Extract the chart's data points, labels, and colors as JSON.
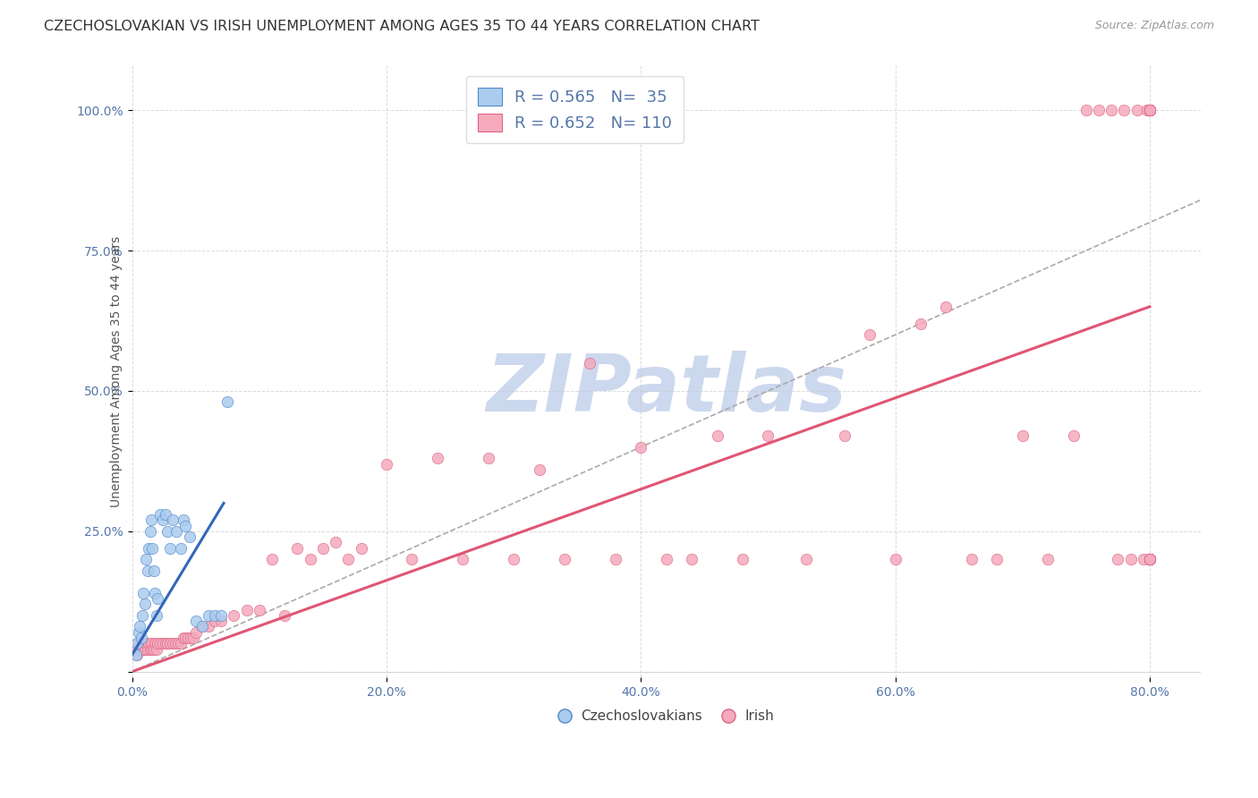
{
  "title": "CZECHOSLOVAKIAN VS IRISH UNEMPLOYMENT AMONG AGES 35 TO 44 YEARS CORRELATION CHART",
  "source": "Source: ZipAtlas.com",
  "ylabel": "Unemployment Among Ages 35 to 44 years",
  "xlim": [
    0.0,
    0.84
  ],
  "ylim": [
    -0.01,
    1.08
  ],
  "xticks": [
    0.0,
    0.2,
    0.4,
    0.6,
    0.8
  ],
  "xtick_labels": [
    "0.0%",
    "20.0%",
    "40.0%",
    "60.0%",
    "80.0%"
  ],
  "yticks": [
    0.0,
    0.25,
    0.5,
    0.75,
    1.0
  ],
  "ytick_labels": [
    "",
    "25.0%",
    "50.0%",
    "75.0%",
    "100.0%"
  ],
  "color_czech": "#aaccee",
  "color_irish": "#f5aabb",
  "color_czech_edge": "#5588cc",
  "color_irish_edge": "#dd6688",
  "color_trend_czech": "#3366bb",
  "color_trend_irish": "#e05575",
  "color_refline": "#aaaaaa",
  "color_axis_ticks": "#5577aa",
  "color_title": "#333333",
  "color_source": "#999999",
  "color_ylabel": "#555555",
  "watermark": "ZIPatlas",
  "watermark_color": "#ccd8ee",
  "legend_label1": "R = 0.565   N=  35",
  "legend_label2": "R = 0.652   N= 110",
  "czech_x": [
    0.003,
    0.004,
    0.005,
    0.006,
    0.007,
    0.008,
    0.009,
    0.01,
    0.011,
    0.012,
    0.013,
    0.014,
    0.015,
    0.016,
    0.017,
    0.018,
    0.019,
    0.02,
    0.022,
    0.024,
    0.026,
    0.028,
    0.03,
    0.032,
    0.035,
    0.038,
    0.04,
    0.042,
    0.045,
    0.05,
    0.055,
    0.06,
    0.065,
    0.07,
    0.075
  ],
  "czech_y": [
    0.03,
    0.05,
    0.07,
    0.08,
    0.06,
    0.1,
    0.14,
    0.12,
    0.2,
    0.18,
    0.22,
    0.25,
    0.27,
    0.22,
    0.18,
    0.14,
    0.1,
    0.13,
    0.28,
    0.27,
    0.28,
    0.25,
    0.22,
    0.27,
    0.25,
    0.22,
    0.27,
    0.26,
    0.24,
    0.09,
    0.08,
    0.1,
    0.1,
    0.1,
    0.48
  ],
  "irish_x": [
    0.002,
    0.003,
    0.004,
    0.005,
    0.006,
    0.007,
    0.008,
    0.009,
    0.01,
    0.011,
    0.012,
    0.013,
    0.014,
    0.015,
    0.016,
    0.017,
    0.018,
    0.019,
    0.02,
    0.022,
    0.024,
    0.026,
    0.028,
    0.03,
    0.032,
    0.034,
    0.036,
    0.038,
    0.04,
    0.042,
    0.044,
    0.046,
    0.048,
    0.05,
    0.055,
    0.06,
    0.065,
    0.07,
    0.08,
    0.09,
    0.1,
    0.11,
    0.12,
    0.13,
    0.14,
    0.15,
    0.16,
    0.17,
    0.18,
    0.2,
    0.22,
    0.24,
    0.26,
    0.28,
    0.3,
    0.32,
    0.34,
    0.36,
    0.38,
    0.4,
    0.42,
    0.44,
    0.46,
    0.48,
    0.5,
    0.53,
    0.56,
    0.58,
    0.6,
    0.62,
    0.64,
    0.66,
    0.68,
    0.7,
    0.72,
    0.74,
    0.75,
    0.76,
    0.77,
    0.775,
    0.78,
    0.785,
    0.79,
    0.795,
    0.798,
    0.8,
    0.8,
    0.8,
    0.8,
    0.8,
    0.8,
    0.8,
    0.8,
    0.8,
    0.8,
    0.8,
    0.8,
    0.8,
    0.8,
    0.8,
    0.8,
    0.8,
    0.8,
    0.8,
    0.8,
    0.8,
    0.8,
    0.8,
    0.8,
    0.8
  ],
  "irish_y": [
    0.04,
    0.04,
    0.03,
    0.05,
    0.04,
    0.04,
    0.05,
    0.04,
    0.04,
    0.05,
    0.04,
    0.05,
    0.04,
    0.05,
    0.04,
    0.04,
    0.05,
    0.04,
    0.05,
    0.05,
    0.05,
    0.05,
    0.05,
    0.05,
    0.05,
    0.05,
    0.05,
    0.05,
    0.06,
    0.06,
    0.06,
    0.06,
    0.06,
    0.07,
    0.08,
    0.08,
    0.09,
    0.09,
    0.1,
    0.11,
    0.11,
    0.2,
    0.1,
    0.22,
    0.2,
    0.22,
    0.23,
    0.2,
    0.22,
    0.37,
    0.2,
    0.38,
    0.2,
    0.38,
    0.2,
    0.36,
    0.2,
    0.55,
    0.2,
    0.4,
    0.2,
    0.2,
    0.42,
    0.2,
    0.42,
    0.2,
    0.42,
    0.6,
    0.2,
    0.62,
    0.65,
    0.2,
    0.2,
    0.42,
    0.2,
    0.42,
    1.0,
    1.0,
    1.0,
    0.2,
    1.0,
    0.2,
    1.0,
    0.2,
    1.0,
    1.0,
    0.2,
    1.0,
    0.2,
    1.0,
    0.2,
    1.0,
    0.2,
    1.0,
    0.2,
    1.0,
    0.2,
    1.0,
    0.2,
    1.0,
    0.2,
    1.0,
    0.2,
    1.0,
    0.2,
    1.0,
    0.2,
    1.0,
    0.2,
    1.0
  ],
  "czech_trend_x": [
    0.0,
    0.072
  ],
  "czech_trend_y": [
    0.03,
    0.3
  ],
  "irish_trend_x": [
    0.0,
    0.8
  ],
  "irish_trend_y": [
    0.0,
    0.65
  ],
  "ref_line_x": [
    0.0,
    1.05
  ],
  "ref_line_y": [
    0.0,
    1.05
  ],
  "marker_size": 80,
  "title_fontsize": 11.5,
  "label_fontsize": 10,
  "tick_fontsize": 10,
  "legend_fontsize": 13,
  "background_color": "#ffffff",
  "grid_color": "#cccccc",
  "grid_alpha": 0.7
}
